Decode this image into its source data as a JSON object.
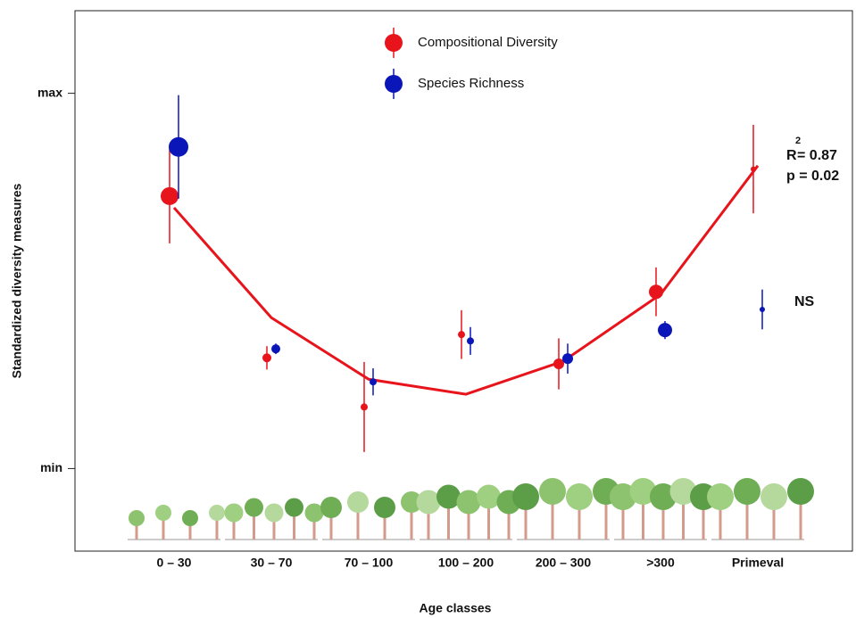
{
  "chart_data": {
    "type": "scatter",
    "x_label": "Age classes",
    "y_label": "Standardized diversity measures",
    "categories": [
      "0 – 30",
      "30 – 70",
      "70 – 100",
      "100 – 200",
      "200 – 300",
      ">300",
      "Primeval"
    ],
    "ylim": [
      -0.22,
      1.22
    ],
    "yticks": [
      {
        "value": 0,
        "label": "min"
      },
      {
        "value": 1,
        "label": "max"
      }
    ],
    "legend": "top",
    "series": [
      {
        "name": "Compositional Diversity",
        "color": "#e8141c",
        "values": [
          0.726,
          0.295,
          0.164,
          0.357,
          0.279,
          0.471,
          0.798
        ],
        "errors": [
          0.126,
          0.031,
          0.12,
          0.065,
          0.068,
          0.065,
          0.118
        ],
        "sizes": [
          10,
          5,
          4,
          4,
          6,
          8,
          3
        ]
      },
      {
        "name": "Species Richness",
        "color": "#0b16b8",
        "values": [
          0.857,
          0.319,
          0.231,
          0.34,
          0.293,
          0.369,
          0.424
        ],
        "errors": [
          0.138,
          0.014,
          0.036,
          0.037,
          0.04,
          0.024,
          0.053
        ],
        "sizes": [
          11,
          5,
          4,
          4,
          6,
          8,
          3
        ]
      }
    ],
    "fit_line": {
      "color": "#e8141c",
      "values": [
        0.695,
        0.402,
        0.238,
        0.198,
        0.286,
        0.464,
        0.807
      ]
    },
    "annotations": [
      {
        "text": "R",
        "sup": "2",
        "rest": "= 0.87",
        "color": "#e8141c"
      },
      {
        "text": "p = 0.02",
        "color": "#e8141c"
      },
      {
        "text": "NS",
        "color": "#3a4fc0"
      }
    ]
  }
}
